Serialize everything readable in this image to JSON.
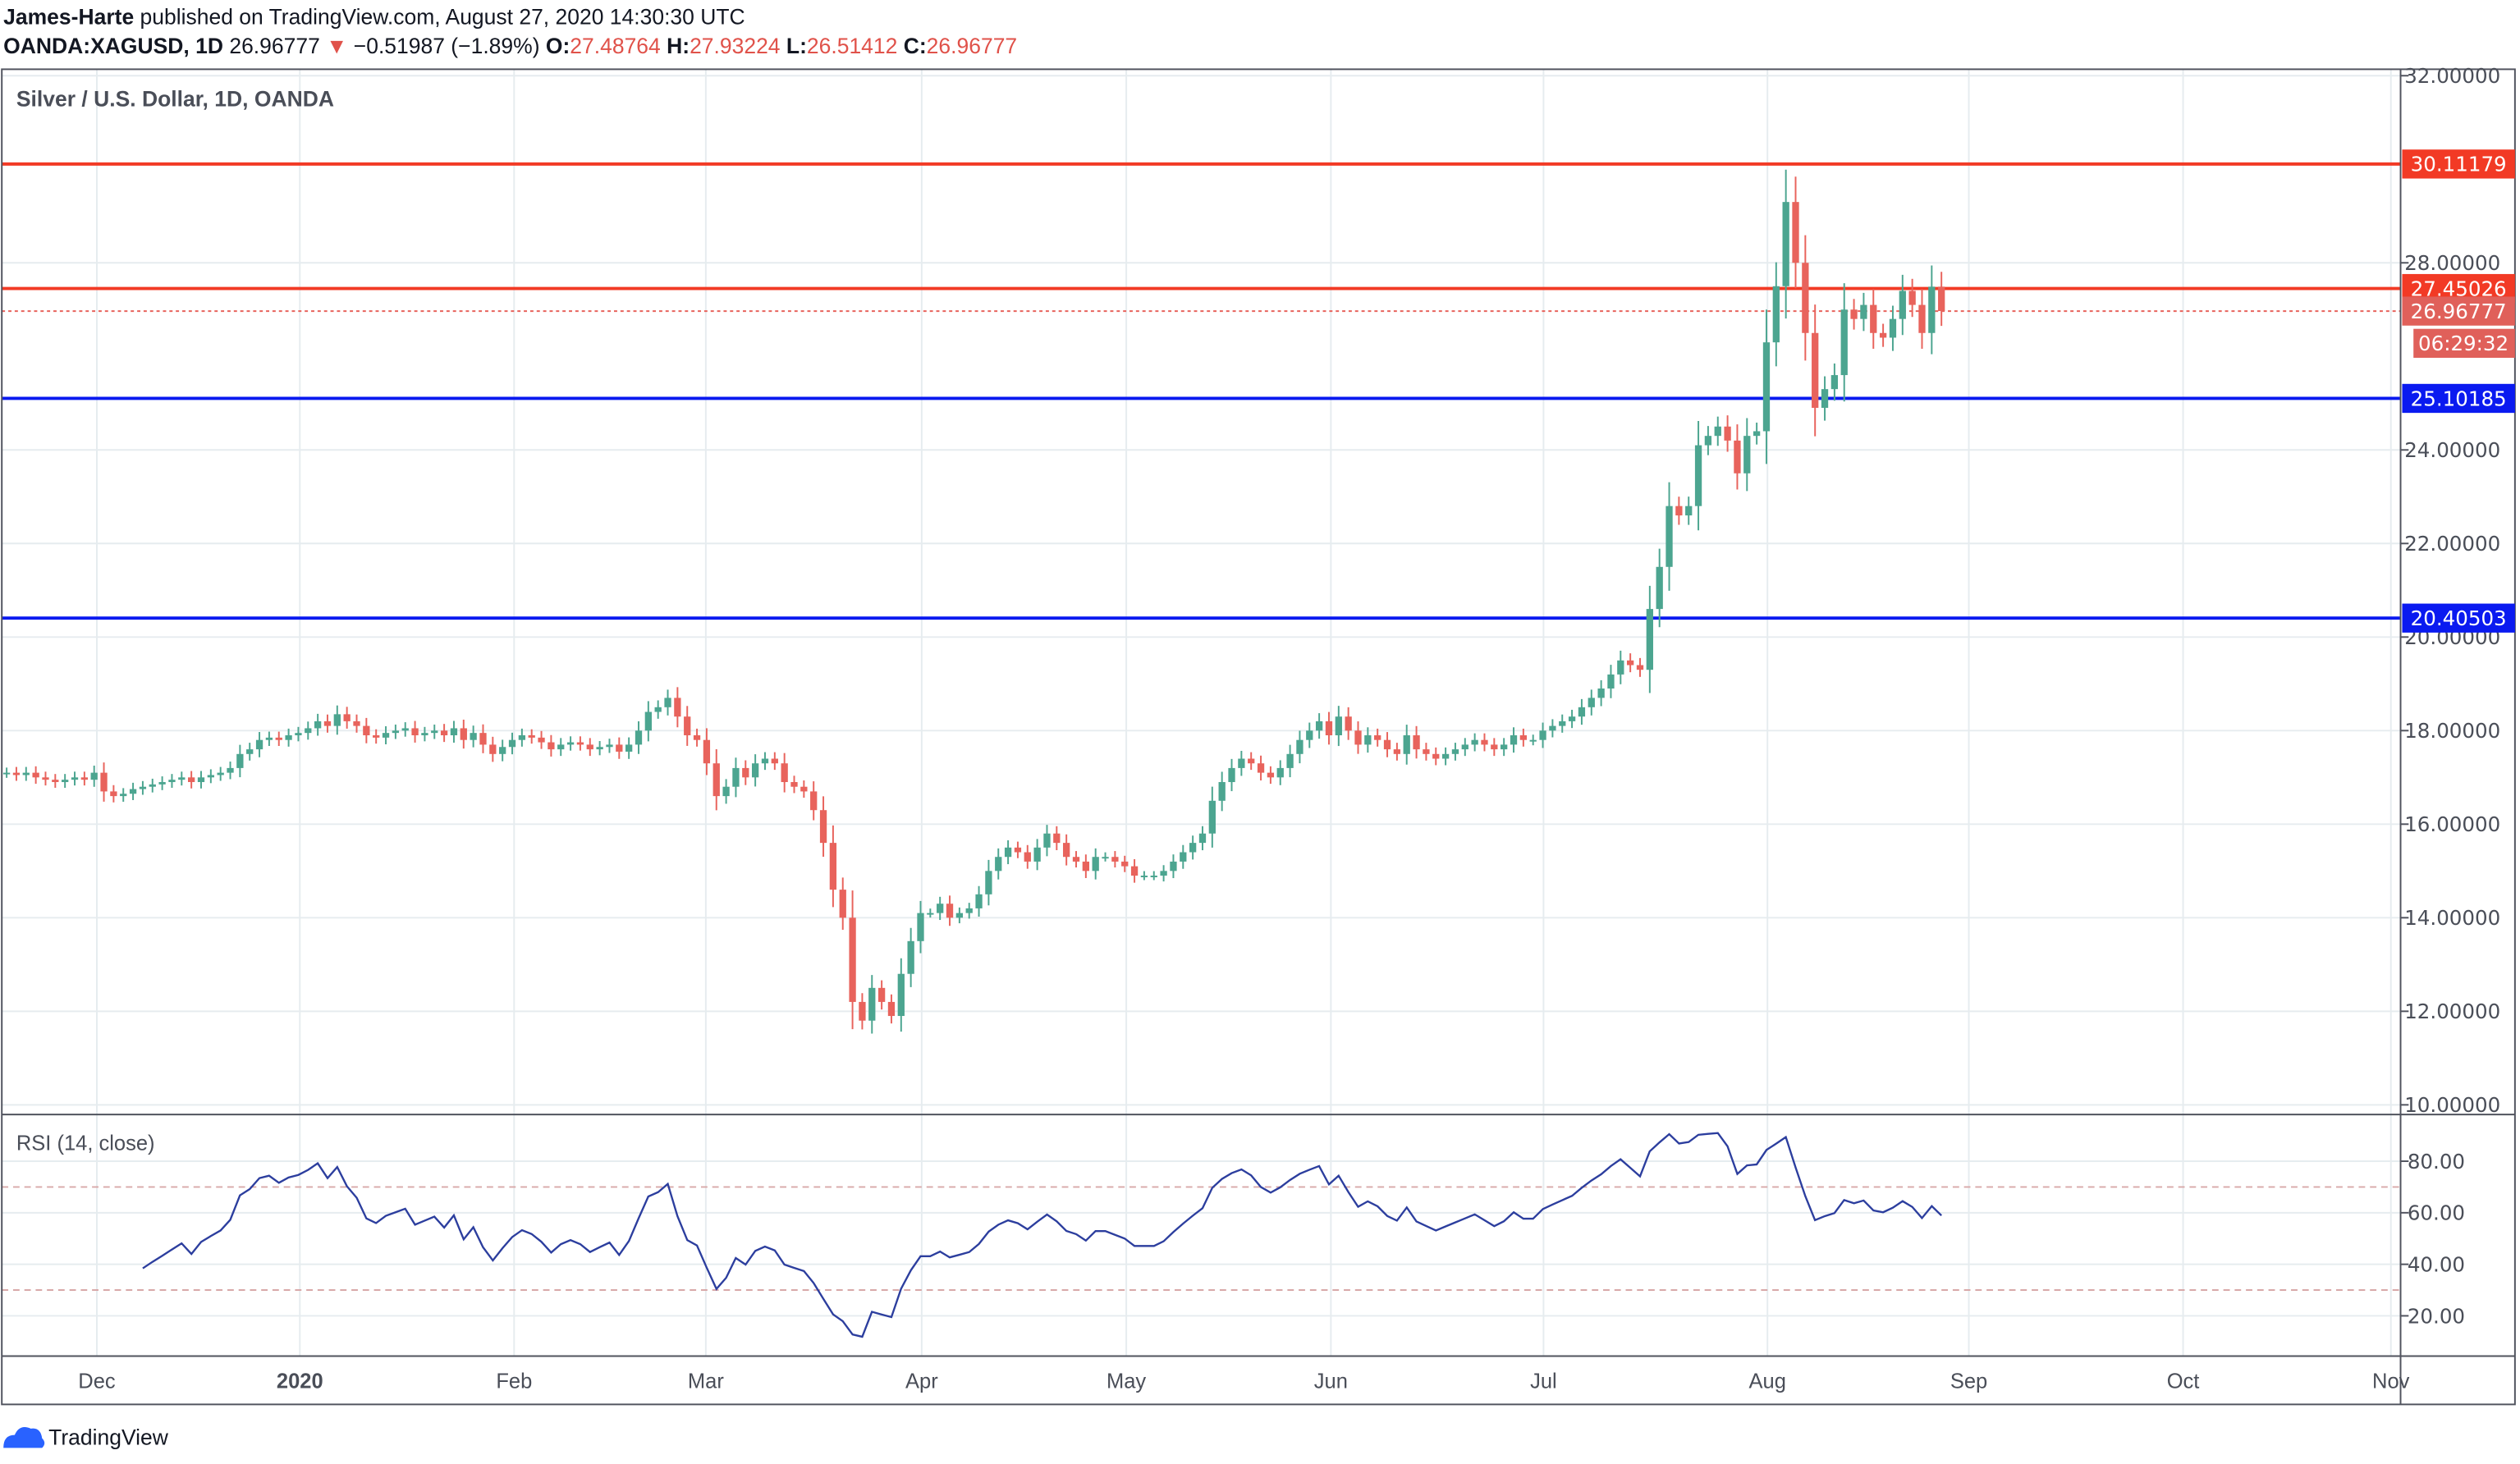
{
  "header": {
    "author": "James-Harte",
    "published": "published on TradingView.com, August 27, 2020 14:30:30 UTC",
    "symbol": "OANDA:XAGUSD, 1D",
    "last": "26.96777",
    "change": "−0.51987 (−1.89%)",
    "o_label": "O:",
    "o": "27.48764",
    "h_label": "H:",
    "h": "27.93224",
    "l_label": "L:",
    "l": "26.51412",
    "c_label": "C:",
    "c": "26.96777"
  },
  "footer": {
    "brand": "TradingView"
  },
  "colors": {
    "up": "#4ca590",
    "down": "#e8635c",
    "resistance": "#f23a25",
    "support": "#0a1af0",
    "rsi": "#2c3e9e"
  },
  "chart_data": [
    {
      "type": "candlestick",
      "title": "Silver / U.S. Dollar, 1D, OANDA",
      "ylim": [
        10,
        32
      ],
      "y_ticks": [
        "32.00000",
        "28.00000",
        "24.00000",
        "22.00000",
        "20.00000",
        "18.00000",
        "16.00000",
        "14.00000",
        "12.00000",
        "10.00000"
      ],
      "x_ticks": [
        "Dec",
        "2020",
        "Feb",
        "Mar",
        "Apr",
        "May",
        "Jun",
        "Jul",
        "Aug",
        "Sep",
        "Oct",
        "Nov"
      ],
      "grid": true,
      "months": [
        {
          "month": "2019-11",
          "closes": [
            17.1,
            17.05,
            17.1,
            17.0,
            16.95,
            16.9,
            16.95,
            17.0,
            16.95,
            17.1
          ]
        },
        {
          "month": "2019-12",
          "closes": [
            16.7,
            16.6,
            16.65,
            16.75,
            16.8,
            16.85,
            16.9,
            16.95,
            17.0,
            16.9,
            17.0,
            17.05,
            17.1,
            17.2,
            17.5,
            17.6,
            17.8,
            17.85,
            17.8,
            17.9,
            17.95,
            18.05
          ]
        },
        {
          "month": "2020-01",
          "closes": [
            18.2,
            18.1,
            18.35,
            18.2,
            18.1,
            17.9,
            17.85,
            17.95,
            18.0,
            18.05,
            17.9,
            17.95,
            18.0,
            17.9,
            18.05,
            17.8,
            17.95,
            17.7,
            17.5,
            17.65,
            17.8,
            17.9
          ]
        },
        {
          "month": "2020-02",
          "closes": [
            17.85,
            17.75,
            17.6,
            17.7,
            17.75,
            17.7,
            17.6,
            17.65,
            17.7,
            17.55,
            17.7,
            18.0,
            18.4,
            18.5,
            18.7,
            18.3,
            17.9,
            17.8,
            17.3,
            16.6
          ]
        },
        {
          "month": "2020-03",
          "closes": [
            16.8,
            17.2,
            17.0,
            17.3,
            17.4,
            17.3,
            16.9,
            16.8,
            16.7,
            16.3,
            15.6,
            14.6,
            14.0,
            12.2,
            11.8,
            12.5,
            12.2,
            11.9,
            12.8,
            13.5,
            14.1,
            14.1
          ]
        },
        {
          "month": "2020-04",
          "closes": [
            14.3,
            14.0,
            14.1,
            14.2,
            14.5,
            15.0,
            15.3,
            15.5,
            15.4,
            15.2,
            15.5,
            15.8,
            15.6,
            15.3,
            15.2,
            15.0,
            15.3,
            15.3,
            15.2,
            15.1,
            14.9
          ]
        },
        {
          "month": "2020-05",
          "closes": [
            14.9,
            14.9,
            15.0,
            15.2,
            15.4,
            15.6,
            15.8,
            16.5,
            16.9,
            17.2,
            17.4,
            17.3,
            17.1,
            17.0,
            17.2,
            17.5,
            17.8,
            18.0,
            18.2,
            17.9
          ]
        },
        {
          "month": "2020-06",
          "closes": [
            18.3,
            18.0,
            17.7,
            17.9,
            17.8,
            17.6,
            17.5,
            17.9,
            17.6,
            17.5,
            17.4,
            17.5,
            17.6,
            17.7,
            17.8,
            17.7,
            17.6,
            17.7,
            17.9,
            17.8,
            17.8,
            18.0
          ]
        },
        {
          "month": "2020-07",
          "closes": [
            18.1,
            18.2,
            18.3,
            18.5,
            18.7,
            18.9,
            19.2,
            19.5,
            19.4,
            19.3,
            20.6,
            21.5,
            22.8,
            22.6,
            22.8,
            24.1,
            24.3,
            24.5,
            24.2,
            23.5,
            24.3,
            24.4
          ]
        },
        {
          "month": "2020-08",
          "closes": [
            26.3,
            27.5,
            29.3,
            28.0,
            26.5,
            24.9,
            25.3,
            25.6,
            27.0,
            26.8,
            27.1,
            26.5,
            26.4,
            26.8,
            27.4,
            27.1,
            26.5,
            27.49,
            26.97
          ]
        }
      ],
      "levels": [
        {
          "value": 30.11179,
          "label": "30.11179",
          "color": "#f23a25"
        },
        {
          "value": 27.45026,
          "label": "27.45026",
          "color": "#f23a25"
        },
        {
          "value": 25.10185,
          "label": "25.10185",
          "color": "#0a1af0"
        },
        {
          "value": 20.40503,
          "label": "20.40503",
          "color": "#0a1af0"
        }
      ],
      "last_price": {
        "value": 26.96777,
        "label": "26.96777",
        "countdown": "06:29:32"
      }
    },
    {
      "type": "line",
      "title": "RSI (14, close)",
      "ylim": [
        0,
        100
      ],
      "y_ticks": [
        "80.00",
        "60.00",
        "40.00",
        "20.00"
      ],
      "bands": [
        70,
        30
      ],
      "period": 14
    }
  ]
}
